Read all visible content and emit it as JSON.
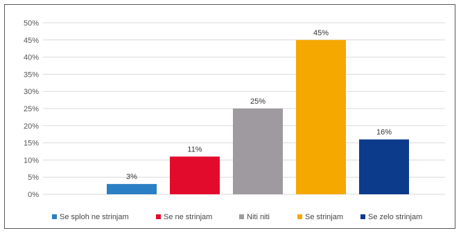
{
  "chart_data": {
    "type": "bar",
    "categories": [
      "Se sploh ne strinjam",
      "Se ne strinjam",
      "Niti niti",
      "Se strinjam",
      "Se zelo strinjam"
    ],
    "values": [
      3,
      11,
      25,
      45,
      16
    ],
    "value_labels": [
      "3%",
      "11%",
      "25%",
      "45%",
      "16%"
    ],
    "colors": [
      "#2b7fc4",
      "#e30b2c",
      "#9e9a9f",
      "#f5a800",
      "#0c3b8c"
    ],
    "ylim": [
      0,
      50
    ],
    "yticks": [
      "0%",
      "5%",
      "10%",
      "15%",
      "20%",
      "25%",
      "30%",
      "35%",
      "40%",
      "45%",
      "50%"
    ],
    "grid": true,
    "legend_position": "bottom",
    "title": "",
    "xlabel": "",
    "ylabel": ""
  }
}
